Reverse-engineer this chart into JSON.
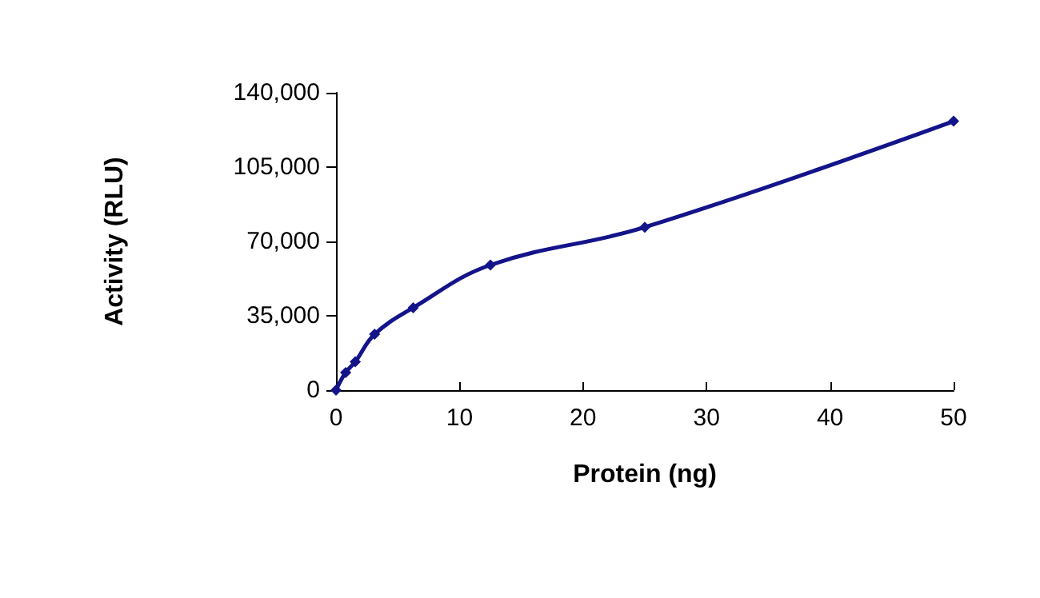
{
  "chart_data": {
    "type": "line",
    "xlabel": "Protein (ng)",
    "ylabel": "Activity (RLU)",
    "x": [
      0,
      0.78,
      1.56,
      3.125,
      6.25,
      12.5,
      25,
      50
    ],
    "series": [
      {
        "color": "#14148a",
        "values": [
          0,
          8300,
          13400,
          26300,
          38800,
          58900,
          76700,
          126600
        ]
      }
    ],
    "xlim": [
      0,
      50
    ],
    "xticks": [
      0,
      10,
      20,
      30,
      40,
      50
    ],
    "ylim": [
      0,
      140000
    ],
    "yticks": [
      0,
      {
        "value": 35000,
        "label": "35,000"
      },
      {
        "value": 70000,
        "label": "70,000"
      },
      {
        "value": 105000,
        "label": "105,000"
      },
      {
        "value": 140000,
        "label": "140,000"
      }
    ],
    "grid": false,
    "marker": "diamond",
    "line_style": "solid"
  }
}
